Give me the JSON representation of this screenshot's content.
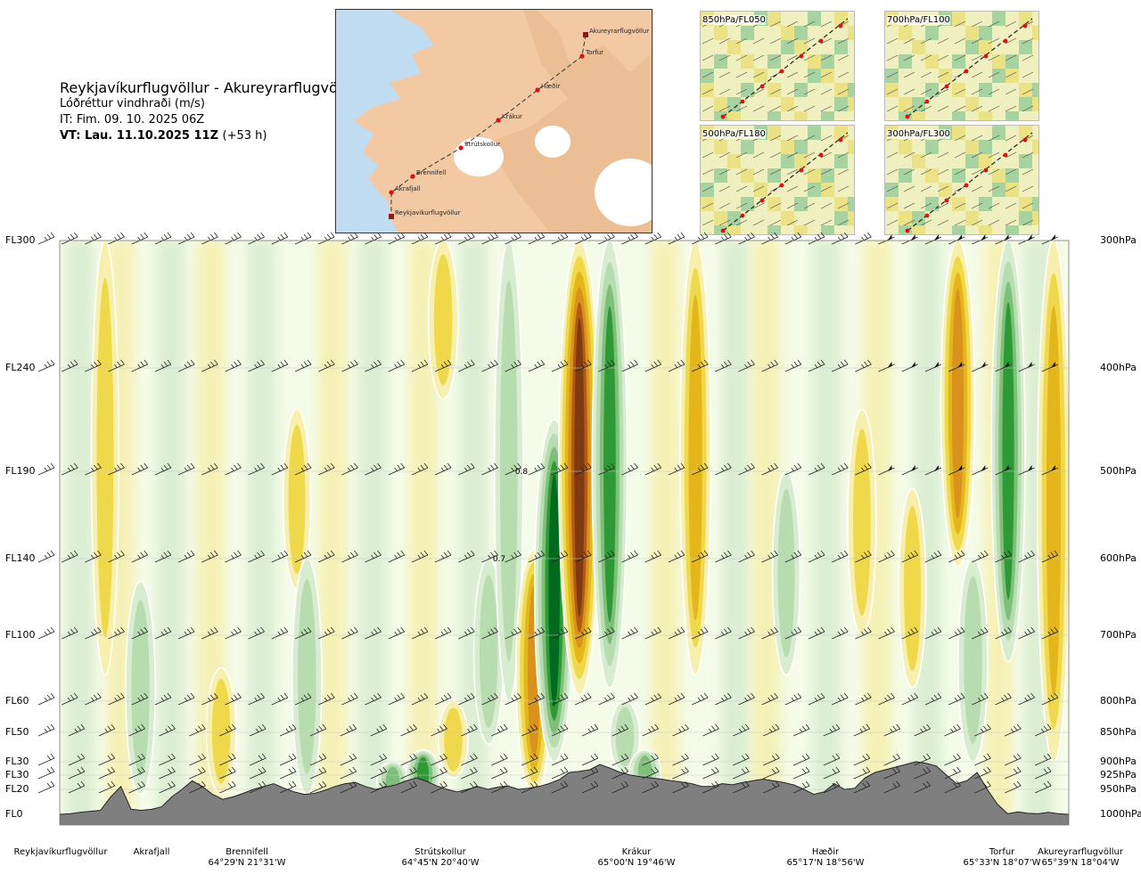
{
  "header": {
    "title": "Reykjavíkurflugvöllur - Akureyrarflugvöllur",
    "subtitle": "Lóðréttur vindhraði (m/s)",
    "issue_time": "IT: Fim. 09. 10. 2025 06Z",
    "valid_time_bold": "VT: Lau. 11.10.2025 11Z",
    "valid_time_offset": "(+53 h)"
  },
  "overview_map": {
    "stations": [
      "Akureyrarflugvöllur",
      "Torfur",
      "Hæðir",
      "Krákur",
      "Strútskollur",
      "Brennifell",
      "Akrafjall",
      "Reykjavíkurflugvöllur"
    ],
    "colors": {
      "sea": "#bfdcf0",
      "land": "#f2c9a3",
      "ice": "#ffffff",
      "route": "#333333",
      "station": "#e01010"
    }
  },
  "mini_maps": [
    {
      "label": "850hPa/FL050"
    },
    {
      "label": "700hPa/FL100"
    },
    {
      "label": "500hPa/FL180"
    },
    {
      "label": "300hPa/FL300"
    }
  ],
  "chart_data": {
    "type": "heatmap",
    "description_quantity": "vertical wind speed (m/s), vertical cross-section along route",
    "left_axis_levels": [
      "FL300",
      "FL240",
      "FL190",
      "FL140",
      "FL100",
      "FL60",
      "FL50",
      "FL30",
      "FL30",
      "FL20",
      "FL0"
    ],
    "right_axis_levels": [
      "300hPa",
      "400hPa",
      "500hPa",
      "600hPa",
      "700hPa",
      "800hPa",
      "850hPa",
      "900hPa",
      "925hPa",
      "950hPa",
      "1000hPa"
    ],
    "pressure_levels_hpa": [
      300,
      400,
      500,
      600,
      700,
      800,
      850,
      900,
      925,
      950,
      1000
    ],
    "x_stations": [
      {
        "name": "Reykjavíkurflugvöllur",
        "coord": ""
      },
      {
        "name": "Akrafjall",
        "coord": ""
      },
      {
        "name": "Brennifell",
        "coord": "64°29'N 21°31'W"
      },
      {
        "name": "Strútskollur",
        "coord": "64°45'N 20°40'W"
      },
      {
        "name": "Krákur",
        "coord": "65°00'N 19°46'W"
      },
      {
        "name": "Hæðir",
        "coord": "65°17'N 18°56'W"
      },
      {
        "name": "Torfur",
        "coord": "65°33'N 18°07'W"
      },
      {
        "name": "Akureyrarflugvöllur",
        "coord": "65°39'N 18°04'W"
      }
    ],
    "contour_labels": [
      "0.8",
      "0.7"
    ],
    "features": [
      {
        "route_pos": 0.045,
        "top_hpa": 300,
        "bottom_hpa": 760,
        "value": 0.2
      },
      {
        "route_pos": 0.08,
        "top_hpa": 630,
        "bottom_hpa": 960,
        "value": -0.3
      },
      {
        "route_pos": 0.16,
        "top_hpa": 750,
        "bottom_hpa": 960,
        "value": 0.3
      },
      {
        "route_pos": 0.235,
        "top_hpa": 440,
        "bottom_hpa": 640,
        "value": 0.2
      },
      {
        "route_pos": 0.245,
        "top_hpa": 600,
        "bottom_hpa": 960,
        "value": -0.3
      },
      {
        "route_pos": 0.33,
        "top_hpa": 900,
        "bottom_hpa": 975,
        "value": -0.4
      },
      {
        "route_pos": 0.36,
        "top_hpa": 880,
        "bottom_hpa": 970,
        "value": -0.5
      },
      {
        "route_pos": 0.39,
        "top_hpa": 800,
        "bottom_hpa": 930,
        "value": 0.3
      },
      {
        "route_pos": 0.38,
        "top_hpa": 300,
        "bottom_hpa": 430,
        "value": 0.3
      },
      {
        "route_pos": 0.425,
        "top_hpa": 600,
        "bottom_hpa": 870,
        "value": -0.3
      },
      {
        "route_pos": 0.445,
        "top_hpa": 300,
        "bottom_hpa": 800,
        "value": -0.25
      },
      {
        "route_pos": 0.47,
        "top_hpa": 590,
        "bottom_hpa": 960,
        "value": 0.6
      },
      {
        "route_pos": 0.49,
        "top_hpa": 450,
        "bottom_hpa": 900,
        "value": -0.75
      },
      {
        "route_pos": 0.515,
        "top_hpa": 300,
        "bottom_hpa": 790,
        "value": 0.85
      },
      {
        "route_pos": 0.545,
        "top_hpa": 300,
        "bottom_hpa": 780,
        "value": -0.55
      },
      {
        "route_pos": 0.56,
        "top_hpa": 800,
        "bottom_hpa": 920,
        "value": -0.3
      },
      {
        "route_pos": 0.58,
        "top_hpa": 880,
        "bottom_hpa": 960,
        "value": -0.4
      },
      {
        "route_pos": 0.63,
        "top_hpa": 300,
        "bottom_hpa": 760,
        "value": 0.35
      },
      {
        "route_pos": 0.72,
        "top_hpa": 500,
        "bottom_hpa": 760,
        "value": -0.2
      },
      {
        "route_pos": 0.795,
        "top_hpa": 440,
        "bottom_hpa": 700,
        "value": 0.25
      },
      {
        "route_pos": 0.845,
        "top_hpa": 520,
        "bottom_hpa": 780,
        "value": 0.2
      },
      {
        "route_pos": 0.89,
        "top_hpa": 300,
        "bottom_hpa": 610,
        "value": 0.5
      },
      {
        "route_pos": 0.905,
        "top_hpa": 600,
        "bottom_hpa": 900,
        "value": -0.3
      },
      {
        "route_pos": 0.94,
        "top_hpa": 300,
        "bottom_hpa": 740,
        "value": -0.5
      },
      {
        "route_pos": 0.985,
        "top_hpa": 300,
        "bottom_hpa": 900,
        "value": 0.45
      }
    ],
    "terrain_hpa": [
      1000,
      999,
      996,
      994,
      992,
      965,
      945,
      990,
      992,
      990,
      985,
      965,
      950,
      935,
      945,
      960,
      970,
      965,
      958,
      950,
      945,
      940,
      948,
      955,
      960,
      958,
      952,
      945,
      940,
      938,
      945,
      950,
      946,
      942,
      935,
      930,
      936,
      944,
      950,
      955,
      950,
      945,
      950,
      946,
      944,
      950,
      948,
      945,
      940,
      933,
      920,
      918,
      915,
      905,
      912,
      920,
      925,
      928,
      930,
      932,
      935,
      937,
      940,
      945,
      945,
      940,
      942,
      938,
      935,
      932,
      935,
      938,
      942,
      950,
      960,
      955,
      940,
      950,
      948,
      930,
      920,
      915,
      910,
      905,
      900,
      903,
      908,
      925,
      940,
      935,
      920,
      950,
      980,
      999,
      995,
      998,
      999,
      996,
      999,
      1000
    ],
    "wind_barb_rows_hpa": [
      300,
      400,
      500,
      600,
      700,
      800,
      850,
      900,
      925,
      950
    ],
    "colorscale": {
      "strong_down": "#006a1e",
      "down_2": "#2e9a35",
      "down_3": "#7ebf7a",
      "down_4": "#b7dcb0",
      "weak_down": "#d8ecd0",
      "near_zero": "#f4fbe8",
      "weak_up": "#f6efae",
      "up_2": "#efd84a",
      "up_3": "#e5b61c",
      "up_4": "#d9921c",
      "up_5": "#b25a14",
      "strong_up": "#7e3a10"
    }
  }
}
